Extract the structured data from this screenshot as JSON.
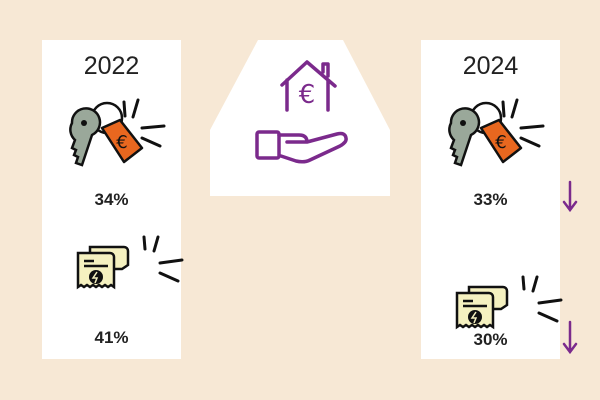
{
  "center_icon": "hand-holding-house-euro-icon",
  "colors": {
    "background": "#f7e8d5",
    "accent": "#7b2a8c",
    "tag": "#e8671f",
    "receipt": "#f5f1c0"
  },
  "columns": [
    {
      "year": "2022",
      "rent": {
        "icon": "key-euro-tag-icon",
        "value": "34%"
      },
      "bills": {
        "icon": "energy-bill-receipt-icon",
        "value": "41%"
      }
    },
    {
      "year": "2024",
      "rent": {
        "icon": "key-euro-tag-icon",
        "value": "33%",
        "trend": "down"
      },
      "bills": {
        "icon": "energy-bill-receipt-icon",
        "value": "30%",
        "trend": "down"
      }
    }
  ]
}
